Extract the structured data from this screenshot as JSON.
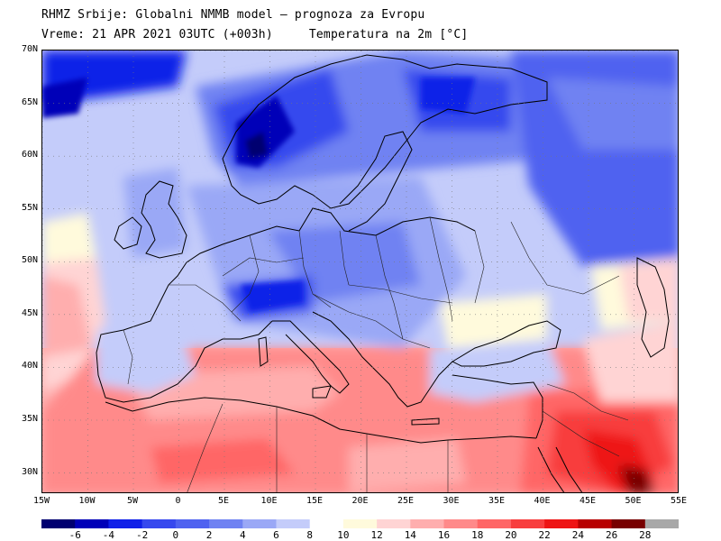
{
  "title": {
    "line1": "RHMZ Srbije: Globalni NMMB model — prognoza za Evropu",
    "line2_left": "Vreme: 21 APR 2021 03UTC (+003h)",
    "line2_right": "Temperatura na 2m [°C]"
  },
  "map": {
    "lon_range": [
      -15,
      55
    ],
    "lat_range": [
      28,
      70
    ],
    "lat_labels": [
      "70N",
      "65N",
      "60N",
      "55N",
      "50N",
      "45N",
      "40N",
      "35N",
      "30N"
    ],
    "lat_values": [
      70,
      65,
      60,
      55,
      50,
      45,
      40,
      35,
      30
    ],
    "lon_labels": [
      "15W",
      "10W",
      "5W",
      "0",
      "5E",
      "10E",
      "15E",
      "20E",
      "25E",
      "30E",
      "35E",
      "40E",
      "45E",
      "50E",
      "55E"
    ],
    "lon_values": [
      -15,
      -10,
      -5,
      0,
      5,
      10,
      15,
      20,
      25,
      30,
      35,
      40,
      45,
      50,
      55
    ],
    "grid": true
  },
  "colorbar": {
    "labels": [
      "-6",
      "-4",
      "-2",
      "0",
      "2",
      "4",
      "6",
      "8",
      "10",
      "12",
      "14",
      "16",
      "18",
      "20",
      "22",
      "24",
      "26",
      "28"
    ],
    "colors": [
      "#000070",
      "#0000b8",
      "#1020e8",
      "#3648ee",
      "#4f62f0",
      "#6f82f2",
      "#9aa8f6",
      "#c4ccfa",
      "#ffffff",
      "#fffadc",
      "#ffd4d4",
      "#ffaeae",
      "#ff8a8a",
      "#ff6666",
      "#f83e3e",
      "#ee1414",
      "#b80000",
      "#780000",
      "#a8a8a8"
    ]
  }
}
